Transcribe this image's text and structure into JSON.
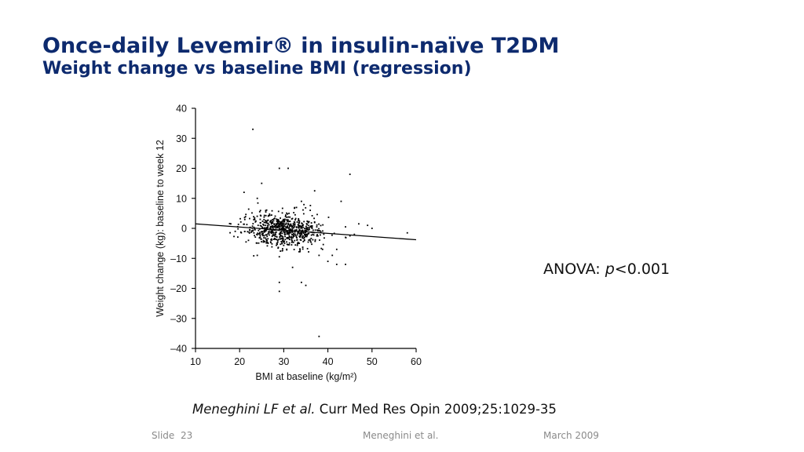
{
  "slide": {
    "title_line1": "Once-daily Levemir® in insulin-naïve T2DM",
    "title_line2": "Weight change vs baseline BMI (regression)",
    "stat_label": "ANOVA: ",
    "stat_p": "p",
    "stat_value": "<0.001",
    "citation_authors": "Meneghini LF et al.",
    "citation_source": " Curr Med Res Opin 2009;25:1029-35"
  },
  "footer": {
    "slide_label": "Slide",
    "slide_number": "23",
    "center": "Meneghini et al.",
    "date": "March 2009"
  },
  "colors": {
    "title": "#0d2a6e",
    "footer": "#8a8a8a",
    "points": "#000000"
  },
  "chart_data": {
    "type": "scatter",
    "xlabel": "BMI at baseline (kg/m²)",
    "ylabel": "Weight change (kg): baseline to week 12",
    "xlim": [
      10,
      60
    ],
    "ylim": [
      -40,
      40
    ],
    "xticks": [
      10,
      20,
      30,
      40,
      50,
      60
    ],
    "yticks": [
      40,
      30,
      20,
      10,
      0,
      -10,
      -20,
      -30,
      -40
    ],
    "yticklabels": [
      "40",
      "30",
      "20",
      "10",
      "0",
      "–10",
      "–20",
      "–30",
      "–40"
    ],
    "regression_line": {
      "x": [
        10,
        60
      ],
      "y": [
        1.5,
        -3.8
      ]
    },
    "outliers": [
      [
        23,
        33
      ],
      [
        29,
        20
      ],
      [
        31,
        20
      ],
      [
        45,
        18
      ],
      [
        25,
        15
      ],
      [
        21,
        12
      ],
      [
        37,
        12.5
      ],
      [
        43,
        9
      ],
      [
        24,
        10
      ],
      [
        34,
        9
      ],
      [
        29,
        -18
      ],
      [
        29,
        -21
      ],
      [
        34,
        -18
      ],
      [
        35,
        -19
      ],
      [
        38,
        -36
      ],
      [
        32,
        -13
      ],
      [
        42,
        -12
      ],
      [
        40,
        -11
      ],
      [
        24,
        -9
      ],
      [
        47,
        1.5
      ],
      [
        49,
        1
      ],
      [
        50,
        0
      ],
      [
        58,
        -1.5
      ],
      [
        46,
        -2
      ],
      [
        44,
        -3
      ],
      [
        42,
        -7
      ],
      [
        41,
        -9
      ],
      [
        18,
        1.5
      ],
      [
        19,
        -1
      ],
      [
        44,
        -12
      ],
      [
        38,
        -9
      ],
      [
        36,
        6
      ],
      [
        22,
        -4
      ],
      [
        44,
        0.5
      ],
      [
        45,
        -2.5
      ]
    ],
    "cluster": {
      "description_free": true,
      "n": 700,
      "x_mean": 30,
      "x_sd": 4.3,
      "y_sd": 2.6,
      "y_intercept_at_x10": 1.5,
      "slope": -0.106
    }
  }
}
